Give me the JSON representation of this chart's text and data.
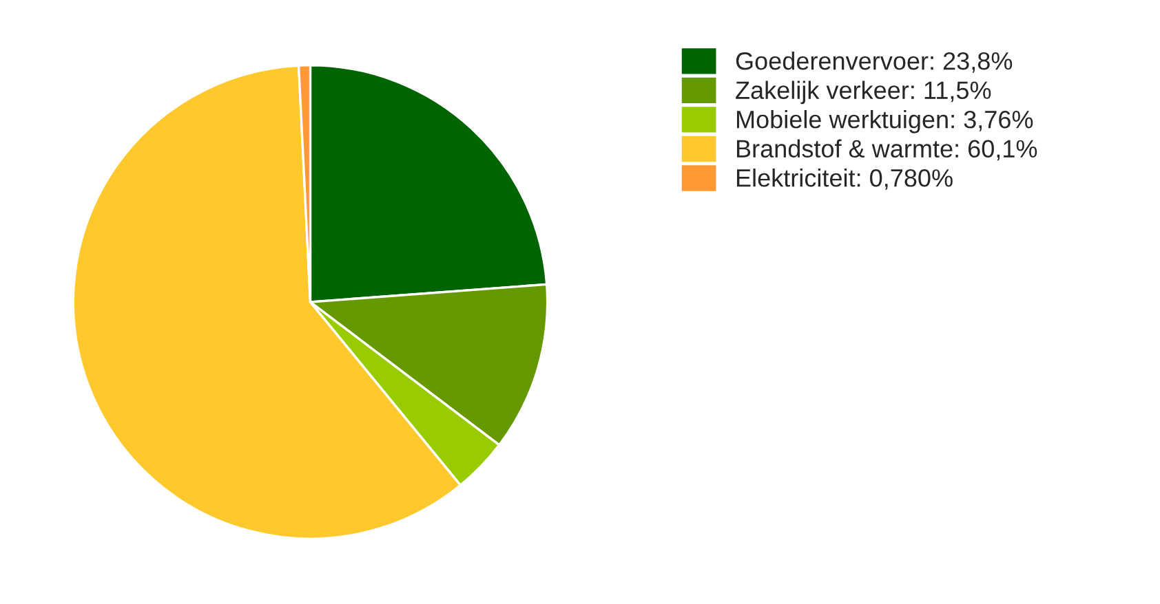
{
  "chart_data": {
    "type": "pie",
    "categories": [
      "Goederenvervoer: 23,8%",
      "Zakelijk verkeer: 11,5%",
      "Mobiele werktuigen: 3,76%",
      "Brandstof & warmte: 60,1%",
      "Elektriciteit: 0,780%"
    ],
    "values": [
      23.8,
      11.5,
      3.76,
      60.1,
      0.78
    ],
    "colors": [
      "#006400",
      "#669900",
      "#99cc00",
      "#ffc82c",
      "#ff9933"
    ],
    "legend": "top right"
  }
}
